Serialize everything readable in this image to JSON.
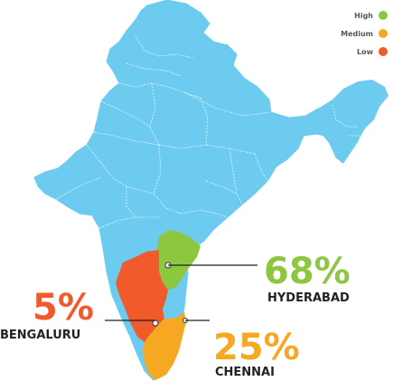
{
  "legend": {
    "items": [
      {
        "label": "High",
        "color": "#8dc63f"
      },
      {
        "label": "Medium",
        "color": "#f7a823"
      },
      {
        "label": "Low",
        "color": "#f15a2b"
      }
    ]
  },
  "cities": [
    {
      "name": "HYDERABAD",
      "percent": "68%",
      "level": "High",
      "color": "#8dc63f"
    },
    {
      "name": "BENGALURU",
      "percent": "5%",
      "level": "Low",
      "color": "#f15a2b"
    },
    {
      "name": "CHENNAI",
      "percent": "25%",
      "level": "Medium",
      "color": "#f7a823"
    }
  ],
  "map": {
    "base_color": "#6ccbef",
    "border_color": "#ffffff",
    "line_color": "#222222"
  }
}
